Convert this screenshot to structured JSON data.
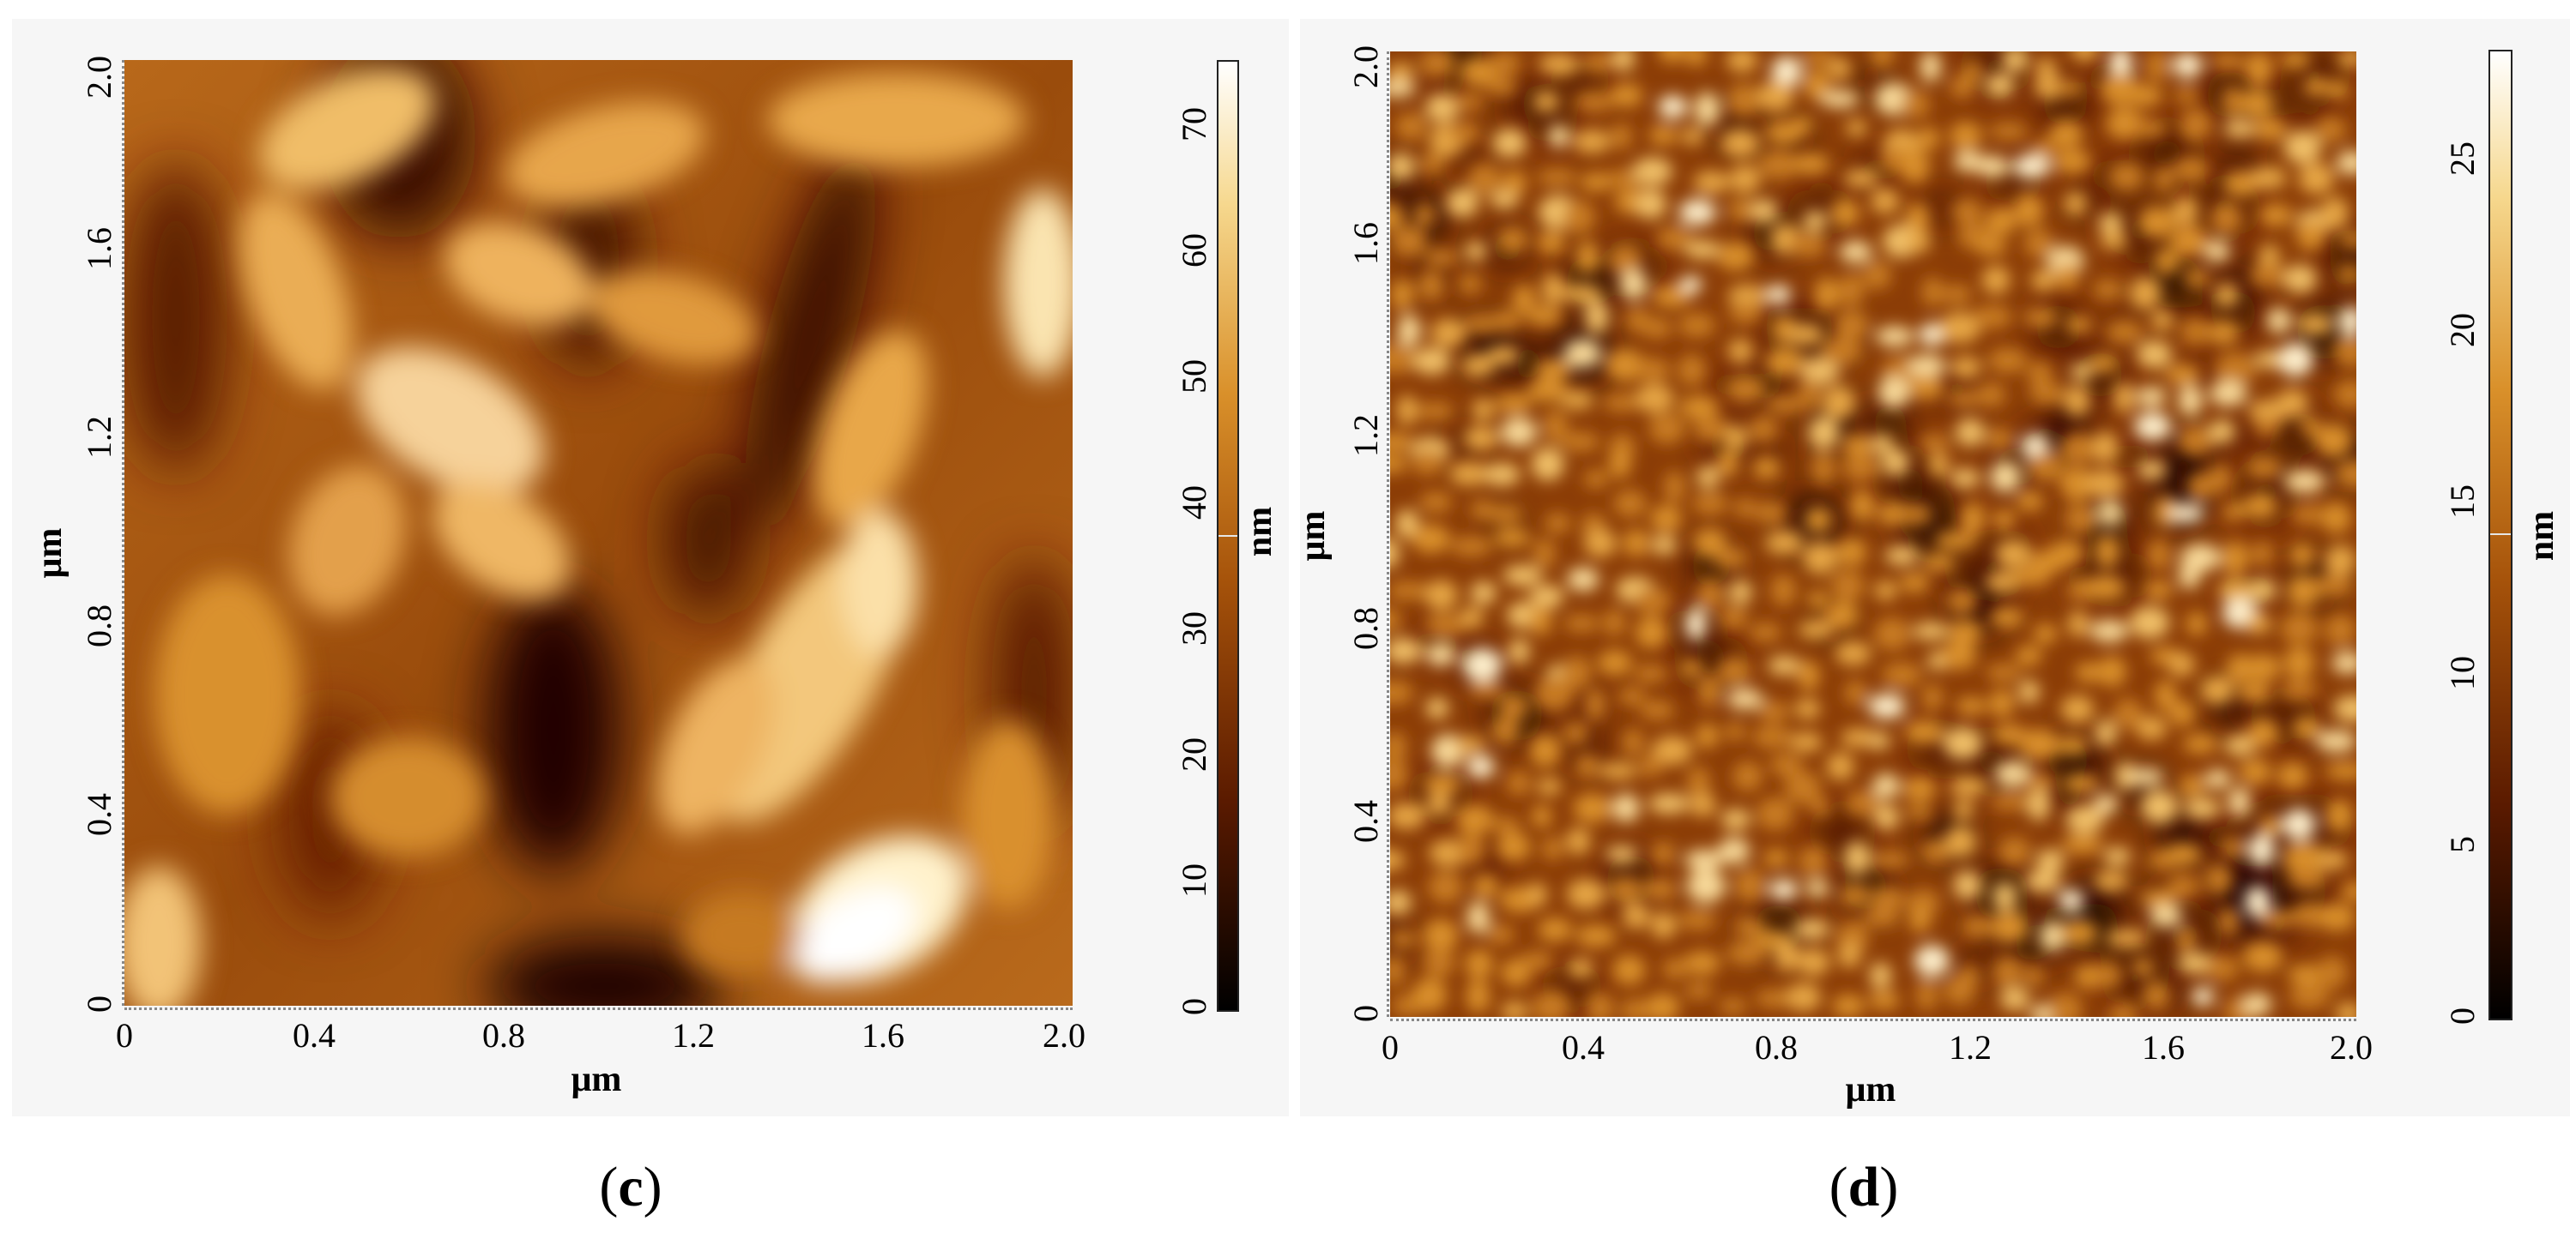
{
  "panels": {
    "c": {
      "caption_open": "(",
      "caption_letter": "c",
      "caption_close": ")",
      "x_ticks": [
        "0",
        "0.4",
        "0.8",
        "1.2",
        "1.6",
        "2.0"
      ],
      "y_ticks": [
        "0",
        "0.4",
        "0.8",
        "1.2",
        "1.6",
        "2.0"
      ],
      "x_unit": "μm",
      "y_unit": "μm",
      "colorbar_ticks": [
        "0",
        "10",
        "20",
        "30",
        "40",
        "50",
        "60",
        "70"
      ],
      "colorbar_unit": "nm",
      "colorbar_max": 75
    },
    "d": {
      "caption_open": "(",
      "caption_letter": "d",
      "caption_close": ")",
      "x_ticks": [
        "0",
        "0.4",
        "0.8",
        "1.2",
        "1.6",
        "2.0"
      ],
      "y_ticks": [
        "0",
        "0.4",
        "0.8",
        "1.2",
        "1.6",
        "2.0"
      ],
      "x_unit": "μm",
      "y_unit": "μm",
      "colorbar_ticks": [
        "0",
        "5",
        "10",
        "15",
        "20",
        "25"
      ],
      "colorbar_unit": "nm",
      "colorbar_max": 28
    }
  },
  "colors": {
    "cmap_0": "#000000",
    "cmap_1": "#5a1a00",
    "cmap_2": "#a5520a",
    "cmap_3": "#d9902a",
    "cmap_4": "#f6d88e",
    "cmap_5": "#ffffff"
  }
}
